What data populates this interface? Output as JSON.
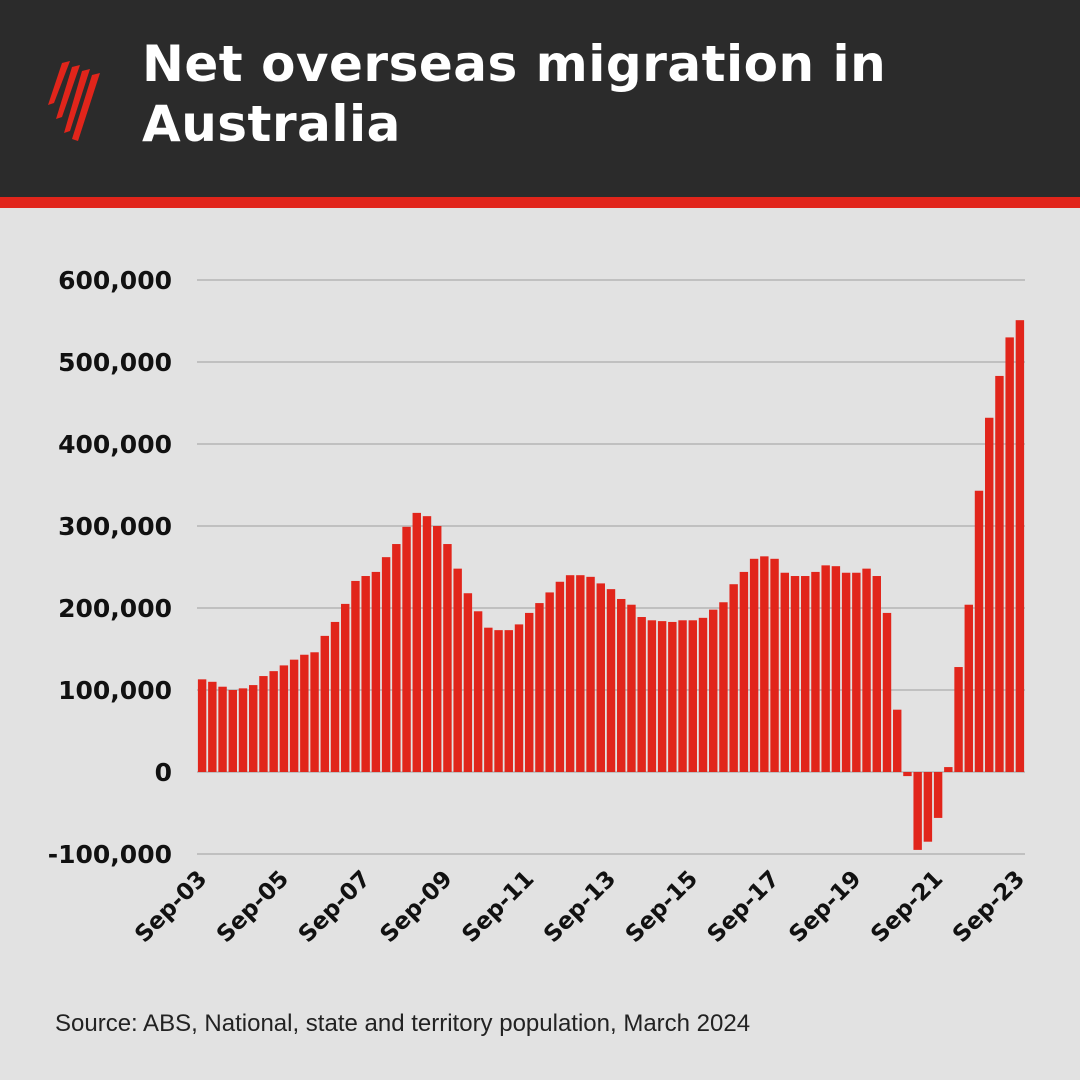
{
  "header": {
    "title": "Net overseas migration in Australia",
    "logo_icon": "sbs-logo"
  },
  "colors": {
    "bar": "#e1251b",
    "header_bg": "#2b2b2b",
    "accent": "#e1251b",
    "background": "#e2e2e2",
    "grid": "#b5b5b5"
  },
  "source": "Source: ABS, National, state and territory population, March 2024",
  "chart_data": {
    "type": "bar",
    "title": "Net overseas migration in Australia",
    "xlabel": "",
    "ylabel": "",
    "ylim": [
      -100000,
      600000
    ],
    "yticks": [
      -100000,
      0,
      100000,
      200000,
      300000,
      400000,
      500000,
      600000
    ],
    "ytick_labels": [
      "-100,000",
      "0",
      "100,000",
      "200,000",
      "300,000",
      "400,000",
      "500,000",
      "600,000"
    ],
    "xtick_labels": [
      "Sep-03",
      "Sep-05",
      "Sep-07",
      "Sep-09",
      "Sep-11",
      "Sep-13",
      "Sep-15",
      "Sep-17",
      "Sep-19",
      "Sep-21",
      "Sep-23"
    ],
    "frequency": "quarterly, Sep-03 to Sep-23",
    "grid": true,
    "values": [
      113000,
      110000,
      104000,
      100000,
      102000,
      106000,
      117000,
      123000,
      130000,
      137000,
      143000,
      146000,
      166000,
      183000,
      205000,
      233000,
      239000,
      244000,
      262000,
      278000,
      299000,
      316000,
      312000,
      300000,
      278000,
      248000,
      218000,
      196000,
      176000,
      173000,
      173000,
      180000,
      194000,
      206000,
      219000,
      232000,
      240000,
      240000,
      238000,
      230000,
      223000,
      211000,
      204000,
      189000,
      185000,
      184000,
      183000,
      185000,
      185000,
      188000,
      198000,
      207000,
      229000,
      244000,
      260000,
      263000,
      260000,
      243000,
      239000,
      239000,
      244000,
      252000,
      251000,
      243000,
      243000,
      248000,
      239000,
      194000,
      76000,
      -5000,
      -95000,
      -85000,
      -56000,
      6000,
      128000,
      204000,
      343000,
      432000,
      483000,
      530000,
      551000
    ]
  }
}
